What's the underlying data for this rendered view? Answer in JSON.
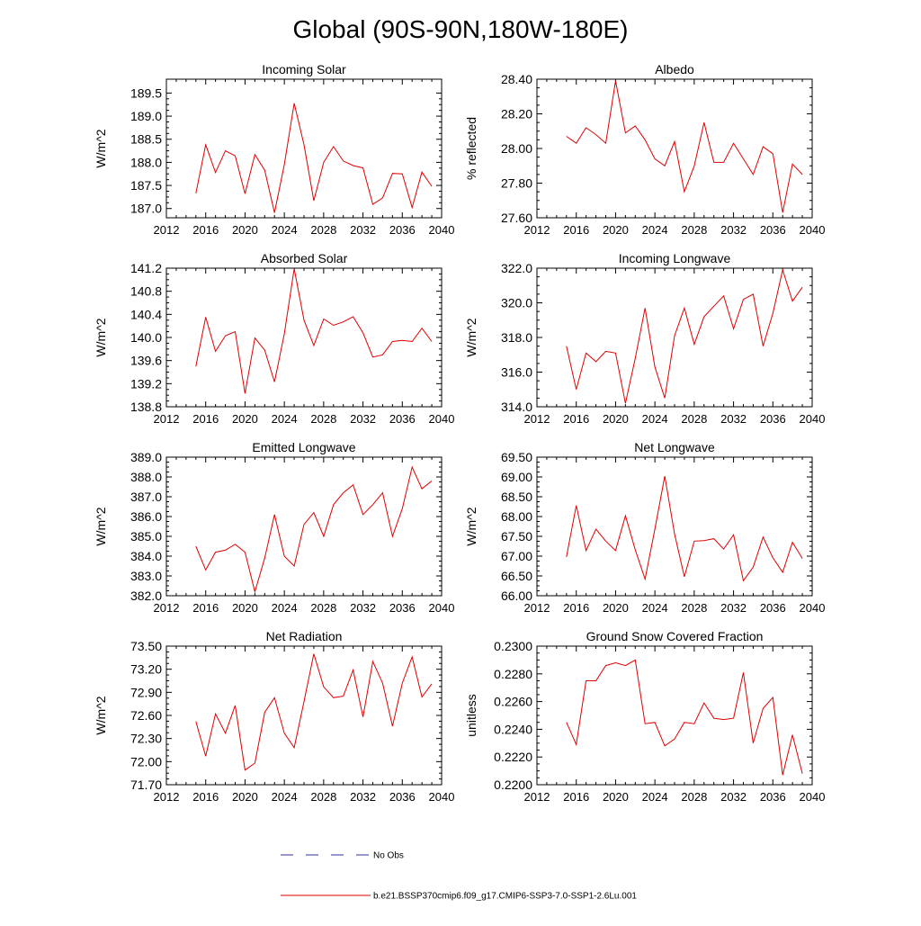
{
  "figure": {
    "title": "Global (90S-90N,180W-180E)",
    "legend": [
      {
        "label": "No Obs",
        "color": "#3030a0",
        "style": "dashed"
      },
      {
        "label": "b.e21.BSSP370cmip6.f09_g17.CMIP6-SSP3-7.0-SSP1-2.6Lu.001",
        "color": "#e00000",
        "style": "solid"
      }
    ]
  },
  "chart_data": [
    {
      "type": "line",
      "title": "Incoming Solar",
      "ylabel": "W/m^2",
      "xlim": [
        2012,
        2040
      ],
      "ylim": [
        186.8,
        189.8
      ],
      "xticks": [
        "2012",
        "2016",
        "2020",
        "2024",
        "2028",
        "2032",
        "2036",
        "2040"
      ],
      "yticks": [
        "187.0",
        "187.5",
        "188.0",
        "188.5",
        "189.0",
        "189.5"
      ],
      "series": [
        {
          "color": "#e00000",
          "x": [
            2015,
            2016,
            2017,
            2018,
            2019,
            2020,
            2021,
            2022,
            2023,
            2024,
            2025,
            2026,
            2027,
            2028,
            2029,
            2030,
            2031,
            2032,
            2033,
            2034,
            2035,
            2036,
            2037,
            2038,
            2039
          ],
          "y": [
            187.33,
            188.38,
            187.78,
            188.25,
            188.14,
            187.32,
            188.17,
            187.83,
            186.91,
            187.95,
            189.28,
            188.38,
            187.17,
            188.0,
            188.34,
            188.03,
            187.93,
            187.88,
            187.09,
            187.23,
            187.76,
            187.75,
            187.02,
            187.79,
            187.48
          ]
        }
      ]
    },
    {
      "type": "line",
      "title": "Albedo",
      "ylabel": "% reflected",
      "xlim": [
        2012,
        2040
      ],
      "ylim": [
        27.6,
        28.4
      ],
      "xticks": [
        "2012",
        "2016",
        "2020",
        "2024",
        "2028",
        "2032",
        "2036",
        "2040"
      ],
      "yticks": [
        "27.60",
        "27.80",
        "28.00",
        "28.20",
        "28.40"
      ],
      "series": [
        {
          "color": "#e00000",
          "x": [
            2015,
            2016,
            2017,
            2018,
            2019,
            2020,
            2021,
            2022,
            2023,
            2024,
            2025,
            2026,
            2027,
            2028,
            2029,
            2030,
            2031,
            2032,
            2033,
            2034,
            2035,
            2036,
            2037,
            2038,
            2039
          ],
          "y": [
            28.07,
            28.03,
            28.12,
            28.08,
            28.03,
            28.39,
            28.09,
            28.13,
            28.05,
            27.94,
            27.9,
            28.04,
            27.75,
            27.9,
            28.15,
            27.92,
            27.92,
            28.03,
            27.94,
            27.85,
            28.01,
            27.97,
            27.63,
            27.91,
            27.85
          ]
        }
      ]
    },
    {
      "type": "line",
      "title": "Absorbed Solar",
      "ylabel": "W/m^2",
      "xlim": [
        2012,
        2040
      ],
      "ylim": [
        138.8,
        141.2
      ],
      "xticks": [
        "2012",
        "2016",
        "2020",
        "2024",
        "2028",
        "2032",
        "2036",
        "2040"
      ],
      "yticks": [
        "138.8",
        "139.2",
        "139.6",
        "140.0",
        "140.4",
        "140.8",
        "141.2"
      ],
      "series": [
        {
          "color": "#e00000",
          "x": [
            2015,
            2016,
            2017,
            2018,
            2019,
            2020,
            2021,
            2022,
            2023,
            2024,
            2025,
            2026,
            2027,
            2028,
            2029,
            2030,
            2031,
            2032,
            2033,
            2034,
            2035,
            2036,
            2037,
            2038,
            2039
          ],
          "y": [
            139.5,
            140.35,
            139.76,
            140.03,
            140.1,
            139.03,
            139.99,
            139.78,
            139.23,
            140.06,
            141.19,
            140.3,
            139.86,
            140.32,
            140.21,
            140.27,
            140.36,
            140.08,
            139.66,
            139.7,
            139.93,
            139.95,
            139.93,
            140.16,
            139.93
          ]
        }
      ]
    },
    {
      "type": "line",
      "title": "Incoming Longwave",
      "ylabel": "W/m^2",
      "xlim": [
        2012,
        2040
      ],
      "ylim": [
        314.0,
        322.0
      ],
      "xticks": [
        "2012",
        "2016",
        "2020",
        "2024",
        "2028",
        "2032",
        "2036",
        "2040"
      ],
      "yticks": [
        "314.0",
        "316.0",
        "318.0",
        "320.0",
        "322.0"
      ],
      "series": [
        {
          "color": "#e00000",
          "x": [
            2015,
            2016,
            2017,
            2018,
            2019,
            2020,
            2021,
            2022,
            2023,
            2024,
            2025,
            2026,
            2027,
            2028,
            2029,
            2030,
            2031,
            2032,
            2033,
            2034,
            2035,
            2036,
            2037,
            2038,
            2039
          ],
          "y": [
            317.5,
            315.0,
            317.1,
            316.6,
            317.2,
            317.1,
            314.2,
            316.8,
            319.7,
            316.3,
            314.5,
            318.1,
            319.7,
            317.6,
            319.2,
            319.8,
            320.4,
            318.5,
            320.2,
            320.5,
            317.5,
            319.4,
            321.9,
            320.1,
            320.9
          ]
        }
      ]
    },
    {
      "type": "line",
      "title": "Emitted Longwave",
      "ylabel": "W/m^2",
      "xlim": [
        2012,
        2040
      ],
      "ylim": [
        382.0,
        389.0
      ],
      "xticks": [
        "2012",
        "2016",
        "2020",
        "2024",
        "2028",
        "2032",
        "2036",
        "2040"
      ],
      "yticks": [
        "382.0",
        "383.0",
        "384.0",
        "385.0",
        "386.0",
        "387.0",
        "388.0",
        "389.0"
      ],
      "series": [
        {
          "color": "#e00000",
          "x": [
            2015,
            2016,
            2017,
            2018,
            2019,
            2020,
            2021,
            2022,
            2023,
            2024,
            2025,
            2026,
            2027,
            2028,
            2029,
            2030,
            2031,
            2032,
            2033,
            2034,
            2035,
            2036,
            2037,
            2038,
            2039
          ],
          "y": [
            384.5,
            383.3,
            384.2,
            384.3,
            384.6,
            384.2,
            382.2,
            383.9,
            386.1,
            384.0,
            383.5,
            385.6,
            386.2,
            385.0,
            386.6,
            387.2,
            387.6,
            386.1,
            386.6,
            387.2,
            385.0,
            386.4,
            388.5,
            387.4,
            387.8
          ]
        }
      ]
    },
    {
      "type": "line",
      "title": "Net Longwave",
      "ylabel": "W/m^2",
      "xlim": [
        2012,
        2040
      ],
      "ylim": [
        66.0,
        69.5
      ],
      "xticks": [
        "2012",
        "2016",
        "2020",
        "2024",
        "2028",
        "2032",
        "2036",
        "2040"
      ],
      "yticks": [
        "66.00",
        "66.50",
        "67.00",
        "67.50",
        "68.00",
        "68.50",
        "69.00",
        "69.50"
      ],
      "series": [
        {
          "color": "#e00000",
          "x": [
            2015,
            2016,
            2017,
            2018,
            2019,
            2020,
            2021,
            2022,
            2023,
            2024,
            2025,
            2026,
            2027,
            2028,
            2029,
            2030,
            2031,
            2032,
            2033,
            2034,
            2035,
            2036,
            2037,
            2038,
            2039
          ],
          "y": [
            66.98,
            68.28,
            67.14,
            67.68,
            67.38,
            67.14,
            68.02,
            67.16,
            66.42,
            67.68,
            69.02,
            67.56,
            66.48,
            67.38,
            67.39,
            67.44,
            67.18,
            67.54,
            66.38,
            66.72,
            67.48,
            66.96,
            66.59,
            67.35,
            66.94
          ]
        }
      ]
    },
    {
      "type": "line",
      "title": "Net Radiation",
      "ylabel": "W/m^2",
      "xlim": [
        2012,
        2040
      ],
      "ylim": [
        71.7,
        73.5
      ],
      "xticks": [
        "2012",
        "2016",
        "2020",
        "2024",
        "2028",
        "2032",
        "2036",
        "2040"
      ],
      "yticks": [
        "71.70",
        "72.00",
        "72.30",
        "72.60",
        "72.90",
        "73.20",
        "73.50"
      ],
      "series": [
        {
          "color": "#e00000",
          "x": [
            2015,
            2016,
            2017,
            2018,
            2019,
            2020,
            2021,
            2022,
            2023,
            2024,
            2025,
            2026,
            2027,
            2028,
            2029,
            2030,
            2031,
            2032,
            2033,
            2034,
            2035,
            2036,
            2037,
            2038,
            2039
          ],
          "y": [
            72.52,
            72.07,
            72.62,
            72.37,
            72.73,
            71.89,
            71.98,
            72.64,
            72.83,
            72.37,
            72.18,
            72.78,
            73.4,
            72.97,
            72.83,
            72.85,
            73.19,
            72.58,
            73.3,
            73.02,
            72.46,
            73.02,
            73.36,
            72.84,
            73.01
          ]
        }
      ]
    },
    {
      "type": "line",
      "title": "Ground Snow Covered Fraction",
      "ylabel": "unitless",
      "xlim": [
        2012,
        2040
      ],
      "ylim": [
        0.22,
        0.23
      ],
      "xticks": [
        "2012",
        "2016",
        "2020",
        "2024",
        "2028",
        "2032",
        "2036",
        "2040"
      ],
      "yticks": [
        "0.2200",
        "0.2220",
        "0.2240",
        "0.2260",
        "0.2280",
        "0.2300"
      ],
      "series": [
        {
          "color": "#e00000",
          "x": [
            2015,
            2016,
            2017,
            2018,
            2019,
            2020,
            2021,
            2022,
            2023,
            2024,
            2025,
            2026,
            2027,
            2028,
            2029,
            2030,
            2031,
            2032,
            2033,
            2034,
            2035,
            2036,
            2037,
            2038,
            2039
          ],
          "y": [
            0.2245,
            0.2229,
            0.2275,
            0.2275,
            0.2286,
            0.2288,
            0.2286,
            0.229,
            0.2244,
            0.2245,
            0.2228,
            0.2233,
            0.2245,
            0.2244,
            0.2259,
            0.2248,
            0.2247,
            0.2248,
            0.2281,
            0.223,
            0.2255,
            0.2263,
            0.2207,
            0.2236,
            0.2208
          ]
        }
      ]
    }
  ]
}
